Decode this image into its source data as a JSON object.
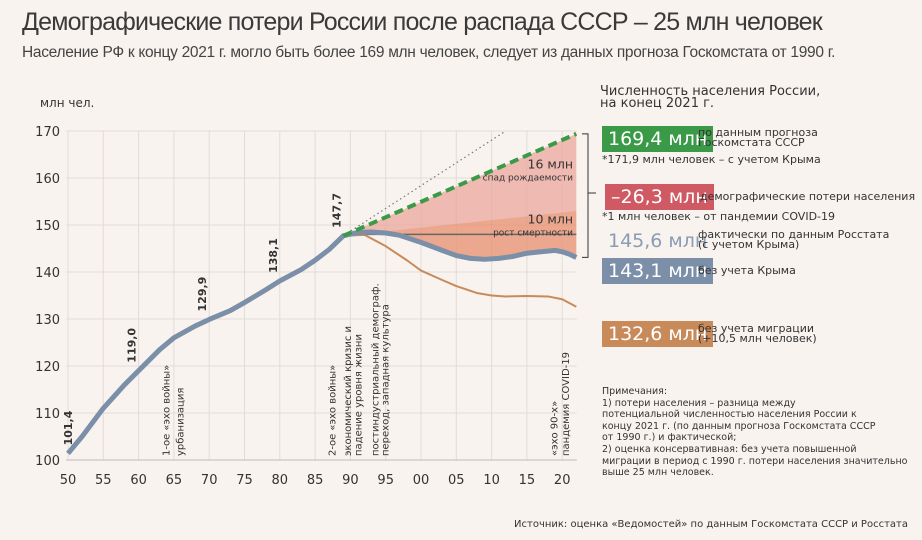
{
  "header": {
    "title": "Демографические потери России после распада СССР – 25 млн человек",
    "subtitle": "Население РФ к концу 2021 г. могло быть более 169 млн человек, следует из данных прогноза Госкомстата от 1990 г."
  },
  "chart_data": {
    "type": "line",
    "ylabel": "млн чел.",
    "xlim": [
      1950,
      2022
    ],
    "ylim": [
      100,
      170
    ],
    "x_ticks": [
      1950,
      1955,
      1960,
      1965,
      1970,
      1975,
      1980,
      1985,
      1990,
      1995,
      2000,
      2005,
      2010,
      2015,
      2020
    ],
    "x_tick_labels": [
      "50",
      "55",
      "60",
      "65",
      "70",
      "75",
      "80",
      "85",
      "90",
      "95",
      "00",
      "05",
      "10",
      "15",
      "20"
    ],
    "y_ticks": [
      100,
      110,
      120,
      130,
      140,
      150,
      160,
      170
    ],
    "y_tick_labels": [
      "100",
      "110",
      "120",
      "130",
      "140",
      "150",
      "160",
      "170"
    ],
    "grid": true,
    "series": [
      {
        "key": "actual",
        "color": "#7b8fa8",
        "style": "solid-thick",
        "x": [
          1950,
          1952,
          1955,
          1958,
          1960,
          1963,
          1965,
          1968,
          1970,
          1973,
          1975,
          1978,
          1980,
          1983,
          1985,
          1987,
          1989,
          1991,
          1993,
          1995,
          1997,
          2000,
          2003,
          2005,
          2007,
          2009,
          2011,
          2013,
          2015,
          2017,
          2019,
          2020,
          2021,
          2022
        ],
        "y": [
          101.4,
          105.0,
          111.0,
          116.0,
          119.0,
          123.5,
          126.0,
          128.5,
          129.9,
          131.8,
          133.5,
          136.2,
          138.1,
          140.5,
          142.5,
          144.8,
          147.7,
          148.4,
          148.5,
          148.3,
          147.8,
          146.3,
          144.6,
          143.5,
          142.9,
          142.7,
          142.9,
          143.3,
          144.0,
          144.3,
          144.6,
          144.3,
          143.8,
          143.1
        ]
      },
      {
        "key": "no_migration",
        "color": "#c98a5a",
        "style": "solid",
        "x": [
          1989,
          1992,
          1995,
          1998,
          2000,
          2003,
          2005,
          2008,
          2010,
          2012,
          2015,
          2018,
          2020,
          2022
        ],
        "y": [
          147.7,
          147.9,
          145.5,
          142.5,
          140.3,
          138.3,
          137.0,
          135.5,
          135.0,
          134.8,
          134.9,
          134.8,
          134.2,
          132.6
        ]
      },
      {
        "key": "forecast",
        "color": "#3a9a47",
        "style": "dashed",
        "x": [
          1989,
          2022
        ],
        "y": [
          147.7,
          169.4
        ]
      },
      {
        "key": "trend",
        "color": "#777777",
        "style": "dotted",
        "x": [
          1989,
          2012
        ],
        "y": [
          147.7,
          170.0
        ]
      },
      {
        "key": "baseline",
        "color": "#666666",
        "style": "thin",
        "x": [
          1990,
          2022
        ],
        "y": [
          148.0,
          148.0
        ]
      }
    ],
    "areas": [
      {
        "key": "birth_decline",
        "color": "#e9a79c",
        "upper": "forecast",
        "lower_x": [
          1989,
          2022
        ],
        "lower_y": [
          147.7,
          153.0
        ]
      },
      {
        "key": "mortality_growth",
        "color": "#e99477"
      }
    ],
    "point_labels": [
      {
        "x": 1951,
        "y": 101.4,
        "text": "101,4"
      },
      {
        "x": 1960,
        "y": 119.0,
        "text": "119,0"
      },
      {
        "x": 1970,
        "y": 129.9,
        "text": "129,9"
      },
      {
        "x": 1980,
        "y": 138.1,
        "text": "138,1"
      },
      {
        "x": 1989,
        "y": 147.7,
        "text": "147,7"
      }
    ],
    "area_labels": [
      {
        "value": "16 млн",
        "text": "спад рождаемости",
        "y": 162
      },
      {
        "value": "10 млн",
        "text": "рост смертности",
        "y": 150.3
      }
    ],
    "annotations": [
      {
        "x": 1963.8,
        "text": "1-ое «эхо войны»"
      },
      {
        "x": 1965.8,
        "text": "урбанизация"
      },
      {
        "x": 1987.3,
        "text": "2-ое «эхо войны»"
      },
      {
        "x": 1989.5,
        "text": "экономический кризис и"
      },
      {
        "x": 1991,
        "text": "падение уровня жизни"
      },
      {
        "x": 1993.4,
        "text": "постиндустриальный демограф."
      },
      {
        "x": 1994.8,
        "text": "переход, западная культура"
      },
      {
        "x": 2018.8,
        "text": "«эхо 90-х»"
      },
      {
        "x": 2020.4,
        "text": "пандемия COVID-19"
      }
    ]
  },
  "legend": {
    "heading_1": "Численность населения России,",
    "heading_2": "на конец 2021 г.",
    "forecast": {
      "value": "169,4 млн",
      "desc_1": "по данным прогноза",
      "desc_2": "Госкомстата СССР",
      "color": "#3a9a47"
    },
    "forecast_note": "*171,9 млн человек – с учетом Крыма",
    "losses": {
      "value": "–26,3 млн",
      "desc": "демографические потери населения",
      "color": "#d05a63"
    },
    "losses_note": "*1 млн человек – от пандемии COVID-19",
    "actual_crimea": {
      "value": "145,6 млн",
      "desc_1": "фактически по данным Росстата",
      "desc_2": "(с учетом Крыма)",
      "color": "#8a9cb5"
    },
    "actual": {
      "value": "143,1 млн",
      "desc": "без учета Крыма",
      "color": "#7b8fa8"
    },
    "no_migration": {
      "value": "132,6 млн",
      "desc_1": "без учета миграции",
      "desc_2": "(+10,5 млн человек)",
      "color": "#c98a5a"
    }
  },
  "notes": "Примечания:\n1) потери населения – разница между\nпотенциальной численностью населения России к\nконцу 2021 г. (по данным прогноза Госкомстата СССР\nот 1990 г.) и фактической;\n2) оценка консервативная: без учета повышенной\nмиграции в период с 1990 г. потери населения значительно\nвыше 25 млн человек.",
  "source": "Источник: оценка «Ведомостей» по данным Госкомстата СССР и Росстата"
}
